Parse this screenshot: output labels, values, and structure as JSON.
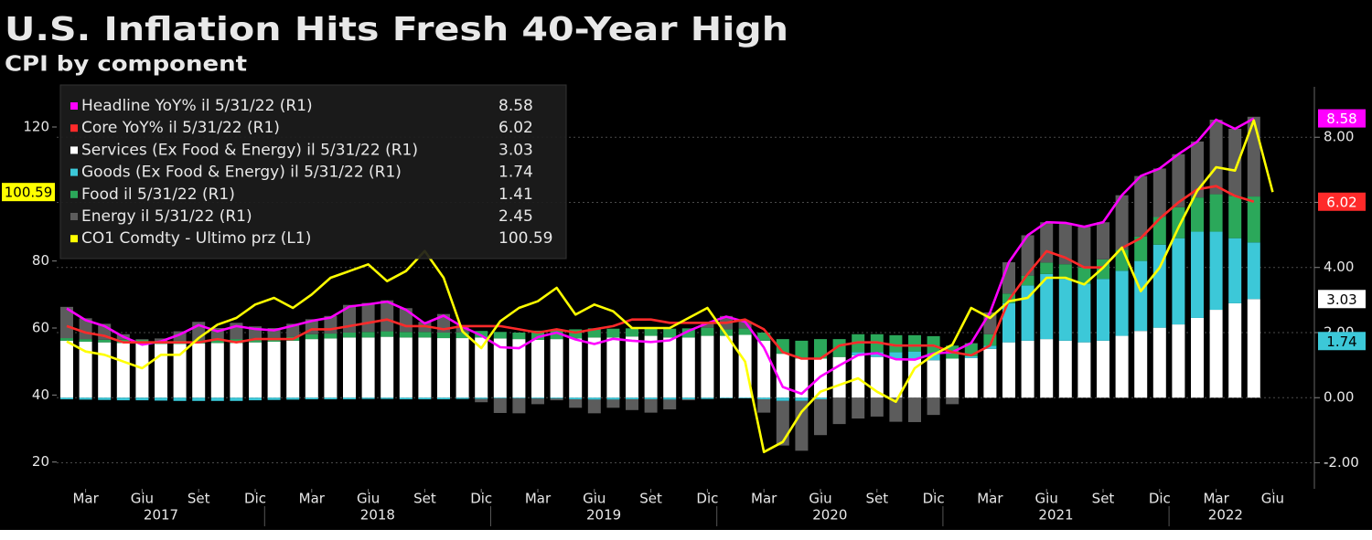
{
  "chart_data": {
    "type": "bar",
    "title": "U.S. Inflation Hits Fresh 40-Year High",
    "subtitle": "CPI by component",
    "x": [
      "2017-02",
      "2017-03",
      "2017-04",
      "2017-05",
      "2017-06",
      "2017-07",
      "2017-08",
      "2017-09",
      "2017-10",
      "2017-11",
      "2017-12",
      "2018-01",
      "2018-02",
      "2018-03",
      "2018-04",
      "2018-05",
      "2018-06",
      "2018-07",
      "2018-08",
      "2018-09",
      "2018-10",
      "2018-11",
      "2018-12",
      "2019-01",
      "2019-02",
      "2019-03",
      "2019-04",
      "2019-05",
      "2019-06",
      "2019-07",
      "2019-08",
      "2019-09",
      "2019-10",
      "2019-11",
      "2019-12",
      "2020-01",
      "2020-02",
      "2020-03",
      "2020-04",
      "2020-05",
      "2020-06",
      "2020-07",
      "2020-08",
      "2020-09",
      "2020-10",
      "2020-11",
      "2020-12",
      "2021-01",
      "2021-02",
      "2021-03",
      "2021-04",
      "2021-05",
      "2021-06",
      "2021-07",
      "2021-08",
      "2021-09",
      "2021-10",
      "2021-11",
      "2021-12",
      "2022-01",
      "2022-02",
      "2022-03",
      "2022-04",
      "2022-05",
      "2022-06"
    ],
    "xticks": [
      {
        "value": "2017-03",
        "label": "Mar"
      },
      {
        "value": "2017-06",
        "label": "Giu"
      },
      {
        "value": "2017-09",
        "label": "Set"
      },
      {
        "value": "2017-12",
        "label": "Dic"
      },
      {
        "value": "2018-03",
        "label": "Mar"
      },
      {
        "value": "2018-06",
        "label": "Giu"
      },
      {
        "value": "2018-09",
        "label": "Set"
      },
      {
        "value": "2018-12",
        "label": "Dic"
      },
      {
        "value": "2019-03",
        "label": "Mar"
      },
      {
        "value": "2019-06",
        "label": "Giu"
      },
      {
        "value": "2019-09",
        "label": "Set"
      },
      {
        "value": "2019-12",
        "label": "Dic"
      },
      {
        "value": "2020-03",
        "label": "Mar"
      },
      {
        "value": "2020-06",
        "label": "Giu"
      },
      {
        "value": "2020-09",
        "label": "Set"
      },
      {
        "value": "2020-12",
        "label": "Dic"
      },
      {
        "value": "2021-03",
        "label": "Mar"
      },
      {
        "value": "2021-06",
        "label": "Giu"
      },
      {
        "value": "2021-09",
        "label": "Set"
      },
      {
        "value": "2021-12",
        "label": "Dic"
      },
      {
        "value": "2022-03",
        "label": "Mar"
      },
      {
        "value": "2022-06",
        "label": "Giu"
      }
    ],
    "years": [
      2017,
      2018,
      2019,
      2020,
      2021,
      2022
    ],
    "ylim": [
      12,
      132
    ],
    "yticks": [
      20,
      40,
      60,
      80,
      120
    ],
    "y2lim": [
      -2.8,
      9.55
    ],
    "y2ticks": [
      {
        "value": -2,
        "label": "-2.00"
      },
      {
        "value": 0,
        "label": "0.00"
      },
      {
        "value": 2,
        "label": "2.00"
      },
      {
        "value": 4,
        "label": "4.00"
      },
      {
        "value": 6,
        "label": "6.00"
      },
      {
        "value": 8,
        "label": "8.00"
      }
    ],
    "grid": "y2",
    "legend": "top-left",
    "series": [
      {
        "name": "Headline YoY% il 5/31/22 (R1)",
        "color": "#ff00ff",
        "kind": "line",
        "axis": "y2",
        "tag": true,
        "values": [
          2.74,
          2.38,
          2.2,
          1.87,
          1.63,
          1.73,
          1.94,
          2.23,
          2.04,
          2.2,
          2.11,
          2.07,
          2.21,
          2.36,
          2.46,
          2.8,
          2.87,
          2.95,
          2.7,
          2.28,
          2.52,
          2.18,
          1.91,
          1.55,
          1.52,
          1.86,
          2.0,
          1.79,
          1.65,
          1.81,
          1.75,
          1.71,
          1.76,
          2.05,
          2.29,
          2.49,
          2.33,
          1.54,
          0.33,
          0.12,
          0.65,
          0.99,
          1.31,
          1.37,
          1.18,
          1.17,
          1.36,
          1.4,
          1.68,
          2.62,
          4.16,
          4.99,
          5.39,
          5.37,
          5.25,
          5.39,
          6.22,
          6.81,
          7.04,
          7.48,
          7.87,
          8.54,
          8.26,
          8.58,
          null
        ]
      },
      {
        "name": "Core YoY% il 5/31/22 (R1)",
        "color": "#ff2a2a",
        "kind": "line",
        "axis": "y2",
        "tag": true,
        "values": [
          2.2,
          2.0,
          1.9,
          1.7,
          1.7,
          1.7,
          1.7,
          1.7,
          1.8,
          1.7,
          1.8,
          1.8,
          1.8,
          2.1,
          2.1,
          2.2,
          2.3,
          2.4,
          2.2,
          2.2,
          2.1,
          2.2,
          2.2,
          2.2,
          2.1,
          2.0,
          2.1,
          2.0,
          2.1,
          2.2,
          2.4,
          2.4,
          2.3,
          2.3,
          2.3,
          2.3,
          2.4,
          2.1,
          1.4,
          1.2,
          1.2,
          1.6,
          1.7,
          1.7,
          1.6,
          1.6,
          1.6,
          1.4,
          1.3,
          1.6,
          3.0,
          3.8,
          4.5,
          4.3,
          4.0,
          4.0,
          4.6,
          4.9,
          5.5,
          6.0,
          6.4,
          6.5,
          6.2,
          6.02,
          null
        ]
      },
      {
        "name": "Services (Ex Food & Energy) il 5/31/22 (R1)",
        "color": "#ffffff",
        "kind": "bar",
        "axis": "y2",
        "tag": true,
        "values": [
          1.75,
          1.72,
          1.7,
          1.68,
          1.68,
          1.65,
          1.65,
          1.67,
          1.68,
          1.68,
          1.7,
          1.72,
          1.75,
          1.8,
          1.82,
          1.85,
          1.85,
          1.87,
          1.85,
          1.85,
          1.83,
          1.83,
          1.85,
          1.82,
          1.8,
          1.78,
          1.8,
          1.82,
          1.85,
          1.85,
          1.88,
          1.9,
          1.85,
          1.85,
          1.9,
          1.9,
          1.93,
          1.75,
          1.35,
          1.2,
          1.2,
          1.25,
          1.3,
          1.25,
          1.2,
          1.2,
          1.15,
          1.2,
          1.22,
          1.5,
          1.7,
          1.75,
          1.8,
          1.75,
          1.7,
          1.75,
          1.9,
          2.05,
          2.15,
          2.25,
          2.45,
          2.7,
          2.9,
          3.03,
          null
        ]
      },
      {
        "name": "Goods (Ex Food & Energy) il 5/31/22 (R1)",
        "color": "#3cc8d8",
        "kind": "bar",
        "axis": "y2",
        "tag": true,
        "values": [
          -0.05,
          -0.06,
          -0.07,
          -0.08,
          -0.08,
          -0.09,
          -0.1,
          -0.1,
          -0.1,
          -0.1,
          -0.08,
          -0.07,
          -0.06,
          -0.05,
          -0.05,
          -0.05,
          -0.04,
          -0.04,
          -0.05,
          -0.05,
          -0.05,
          -0.04,
          -0.04,
          -0.02,
          -0.02,
          -0.03,
          -0.03,
          -0.05,
          -0.06,
          -0.06,
          -0.05,
          -0.05,
          -0.06,
          -0.05,
          -0.04,
          -0.02,
          -0.02,
          -0.05,
          -0.1,
          -0.1,
          -0.05,
          0,
          0.1,
          0.15,
          0.2,
          0.22,
          0.22,
          0,
          0.05,
          0.1,
          1.2,
          1.7,
          2.0,
          1.9,
          1.8,
          1.9,
          2.0,
          2.15,
          2.55,
          2.65,
          2.65,
          2.4,
          2.0,
          1.74,
          null
        ]
      },
      {
        "name": "Food il 5/31/22 (R1)",
        "color": "#2ba85a",
        "kind": "bar",
        "axis": "y2",
        "values": [
          0.08,
          0.08,
          0.08,
          0.1,
          0.1,
          0.1,
          0.1,
          0.1,
          0.12,
          0.12,
          0.12,
          0.12,
          0.12,
          0.15,
          0.15,
          0.15,
          0.17,
          0.17,
          0.17,
          0.17,
          0.17,
          0.18,
          0.2,
          0.2,
          0.2,
          0.28,
          0.28,
          0.28,
          0.28,
          0.27,
          0.25,
          0.27,
          0.27,
          0.28,
          0.25,
          0.2,
          0.2,
          0.25,
          0.45,
          0.55,
          0.6,
          0.55,
          0.55,
          0.55,
          0.52,
          0.5,
          0.52,
          0.4,
          0.4,
          0.35,
          0.3,
          0.3,
          0.35,
          0.45,
          0.5,
          0.6,
          0.65,
          0.75,
          0.85,
          0.95,
          1.05,
          1.15,
          1.3,
          1.41,
          null
        ]
      },
      {
        "name": "Energy il 5/31/22 (R1)",
        "color": "#5c5c5c",
        "kind": "bar",
        "axis": "y2",
        "values": [
          0.96,
          0.64,
          0.49,
          0.17,
          0.02,
          0.07,
          0.29,
          0.56,
          0.34,
          0.5,
          0.37,
          0.3,
          0.4,
          0.46,
          0.54,
          0.85,
          0.89,
          0.95,
          0.73,
          0.31,
          0.57,
          0.21,
          -0.1,
          -0.45,
          -0.46,
          -0.17,
          -0.05,
          -0.26,
          -0.42,
          -0.25,
          -0.33,
          -0.41,
          -0.3,
          -0.03,
          0.18,
          0.41,
          0.22,
          -0.41,
          -1.37,
          -1.53,
          -1.1,
          -0.81,
          -0.64,
          -0.58,
          -0.74,
          -0.75,
          -0.53,
          -0.2,
          0.01,
          0.67,
          0.96,
          1.24,
          1.24,
          1.27,
          1.25,
          1.14,
          1.67,
          1.86,
          1.49,
          1.63,
          1.72,
          2.29,
          2.06,
          2.45,
          null
        ]
      },
      {
        "name": "CO1 Comdty - Ultimo prz (L1)",
        "color": "#ffff00",
        "kind": "line",
        "tag": true,
        "values": [
          56,
          53,
          52,
          50,
          48,
          52,
          52,
          57,
          61,
          63,
          67,
          69,
          66,
          70,
          75,
          77,
          79,
          74,
          77,
          83,
          75,
          59,
          54,
          62,
          66,
          68,
          72,
          64,
          67,
          65,
          60,
          60,
          60,
          63,
          66,
          58,
          50,
          23,
          26,
          35,
          41,
          43,
          45,
          41,
          38,
          48,
          52,
          55,
          66,
          63,
          68,
          69,
          75,
          75,
          73,
          78,
          84,
          71,
          78,
          90,
          101,
          108,
          107,
          122,
          100.59
        ]
      }
    ]
  }
}
